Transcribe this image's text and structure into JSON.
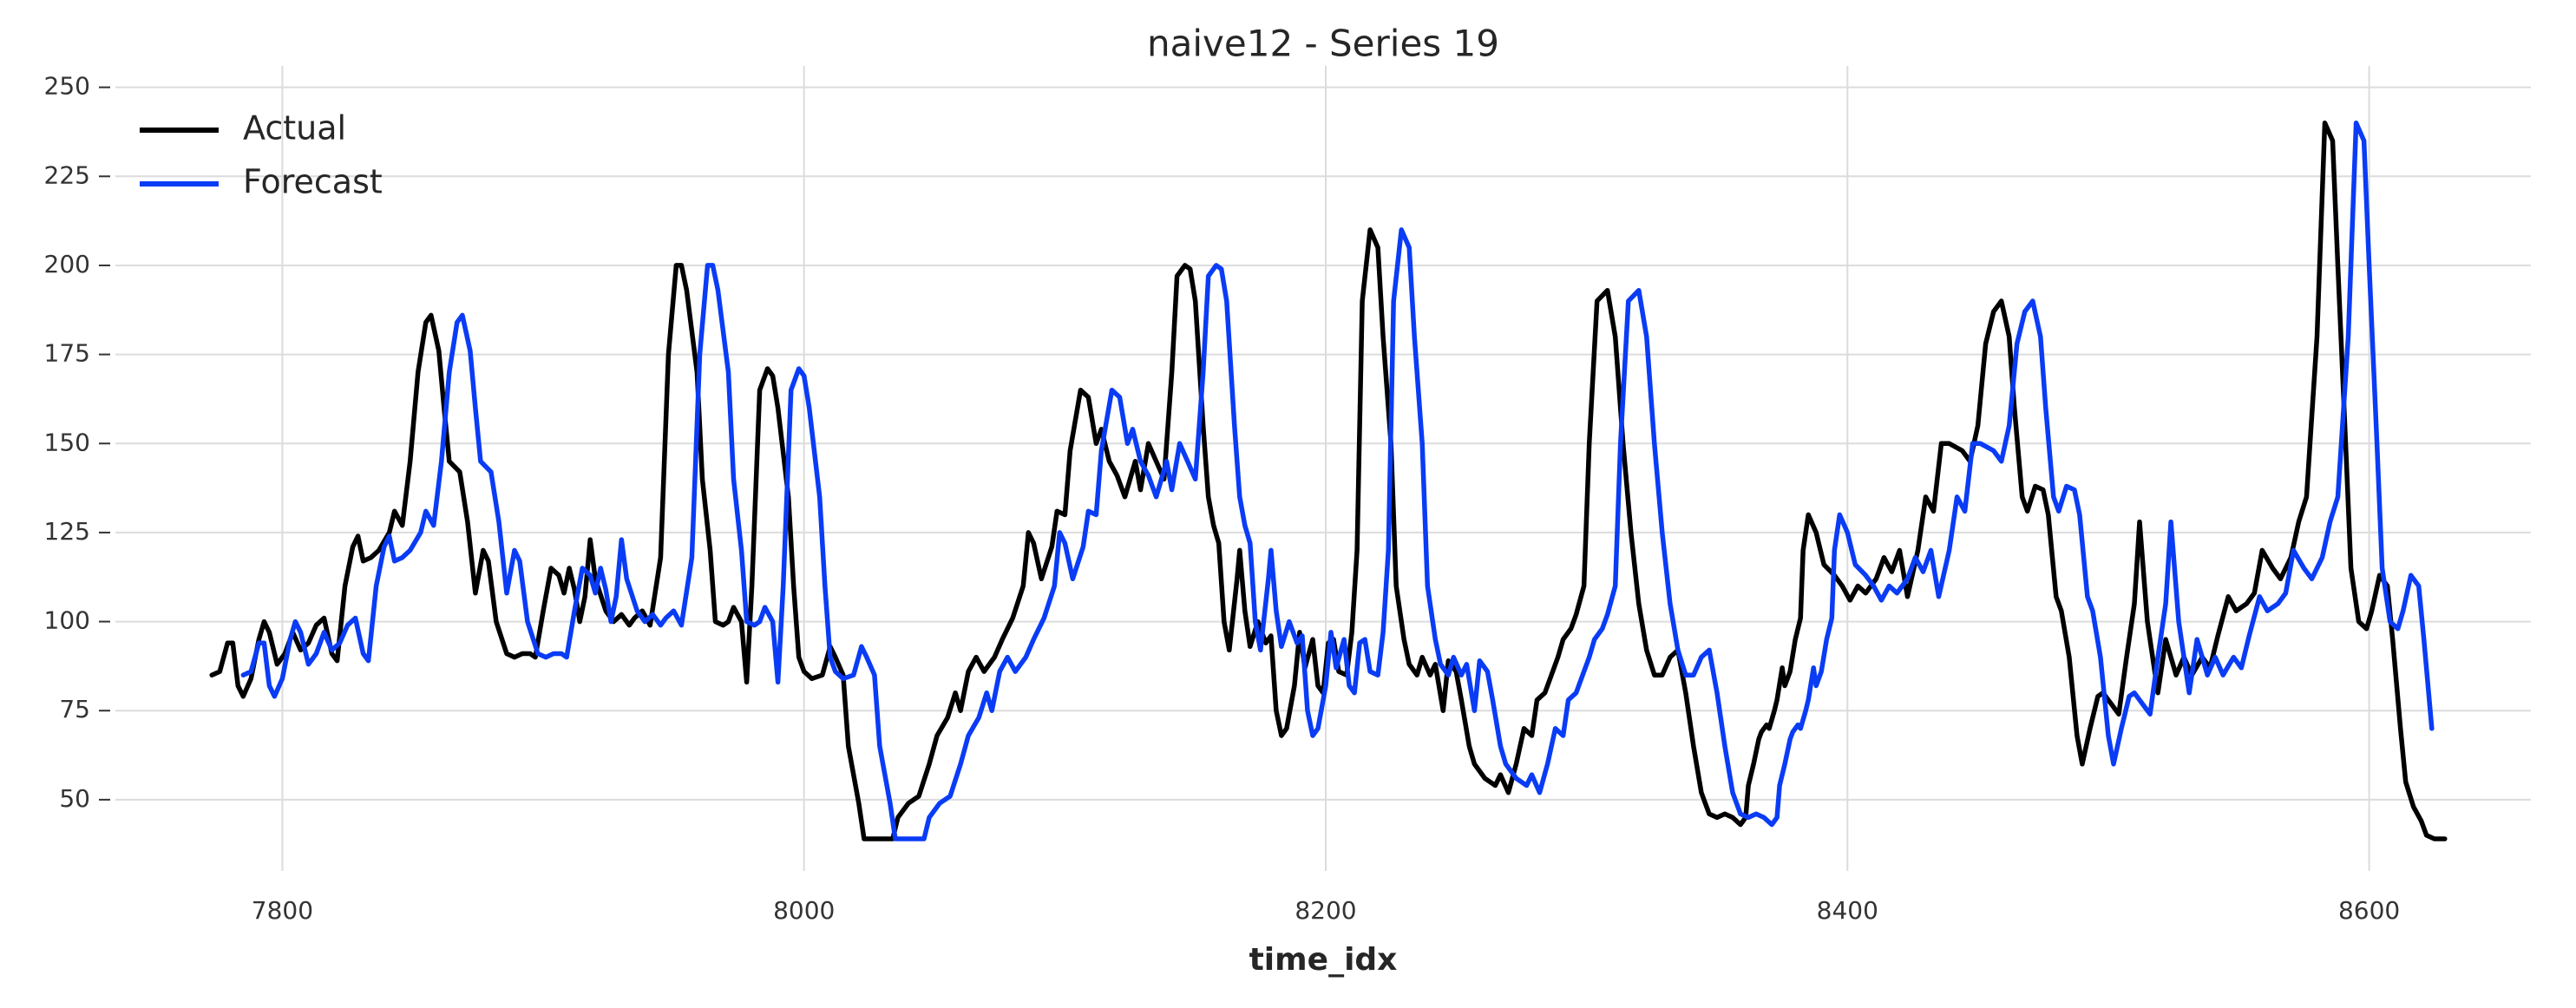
{
  "chart_data": {
    "type": "line",
    "title": "naive12 - Series 19",
    "x_label": "time_idx",
    "xlim": [
      7736,
      8662
    ],
    "ylim": [
      30,
      256
    ],
    "xticks": [
      7800,
      8000,
      8200,
      8400,
      8600
    ],
    "yticks": [
      50,
      75,
      100,
      125,
      150,
      175,
      200,
      225,
      250
    ],
    "grid": true,
    "legend": "upper left",
    "series": [
      {
        "name": "Actual",
        "color": "#000000",
        "x": [
          7773,
          7776,
          7779,
          7781,
          7783,
          7785,
          7788,
          7791,
          7793,
          7795,
          7798,
          7801,
          7804,
          7807,
          7810,
          7813,
          7816,
          7819,
          7821,
          7824,
          7827,
          7829,
          7831,
          7834,
          7837,
          7841,
          7843,
          7846,
          7849,
          7852,
          7855,
          7857,
          7860,
          7862,
          7864,
          7868,
          7871,
          7874,
          7877,
          7879,
          7882,
          7886,
          7889,
          7892,
          7895,
          7897,
          7900,
          7903,
          7906,
          7908,
          7910,
          7912,
          7914,
          7916,
          7918,
          7920,
          7924,
          7927,
          7930,
          7933,
          7935,
          7938,
          7941,
          7945,
          7948,
          7951,
          7953,
          7955,
          7959,
          7961,
          7964,
          7966,
          7969,
          7971,
          7973,
          7976,
          7978,
          7980,
          7983,
          7986,
          7988,
          7990,
          7994,
          7996,
          7998,
          8000,
          8003,
          8007,
          8010,
          8012,
          8015,
          8017,
          8021,
          8023,
          8026,
          8029,
          8034,
          8036,
          8040,
          8044,
          8048,
          8051,
          8055,
          8058,
          8060,
          8063,
          8066,
          8069,
          8073,
          8076,
          8080,
          8084,
          8086,
          8088,
          8091,
          8095,
          8097,
          8100,
          8102,
          8106,
          8109,
          8112,
          8114,
          8117,
          8120,
          8123,
          8127,
          8129,
          8132,
          8135,
          8138,
          8141,
          8143,
          8146,
          8148,
          8150,
          8153,
          8155,
          8157,
          8159,
          8161,
          8163,
          8166,
          8167,
          8169,
          8171,
          8174,
          8177,
          8179,
          8181,
          8183,
          8185,
          8188,
          8190,
          8192,
          8195,
          8197,
          8199,
          8201,
          8203,
          8205,
          8208,
          8210,
          8212,
          8214,
          8217,
          8220,
          8222,
          8225,
          8227,
          8230,
          8232,
          8235,
          8237,
          8240,
          8242,
          8245,
          8247,
          8250,
          8252,
          8255,
          8257,
          8261,
          8265,
          8267,
          8270,
          8273,
          8276,
          8279,
          8281,
          8284,
          8286,
          8289,
          8291,
          8294,
          8296,
          8299,
          8301,
          8304,
          8308,
          8311,
          8314,
          8317,
          8320,
          8323,
          8326,
          8329,
          8332,
          8335,
          8338,
          8341,
          8344,
          8347,
          8350,
          8353,
          8356,
          8359,
          8361,
          8362,
          8364,
          8366,
          8367,
          8369,
          8370,
          8372,
          8373,
          8375,
          8376,
          8378,
          8380,
          8382,
          8383,
          8385,
          8388,
          8391,
          8395,
          8398,
          8401,
          8404,
          8407,
          8411,
          8414,
          8417,
          8420,
          8423,
          8427,
          8430,
          8433,
          8436,
          8439,
          8444,
          8447,
          8450,
          8453,
          8456,
          8459,
          8462,
          8464,
          8467,
          8469,
          8472,
          8475,
          8477,
          8480,
          8482,
          8485,
          8488,
          8490,
          8493,
          8496,
          8498,
          8501,
          8504,
          8507,
          8510,
          8512,
          8515,
          8519,
          8522,
          8526,
          8529,
          8532,
          8536,
          8539,
          8542,
          8546,
          8549,
          8553,
          8556,
          8559,
          8563,
          8566,
          8570,
          8573,
          8576,
          8580,
          8583,
          8586,
          8588,
          8591,
          8593,
          8596,
          8599,
          8601,
          8604,
          8607,
          8609,
          8612,
          8614,
          8617,
          8620,
          8622,
          8625,
          8629
        ],
        "values": [
          85,
          86,
          94,
          94,
          82,
          79,
          84,
          95,
          100,
          97,
          88,
          91,
          97,
          92,
          94,
          99,
          101,
          91,
          89,
          110,
          121,
          124,
          117,
          118,
          120,
          125,
          131,
          127,
          145,
          170,
          184,
          186,
          176,
          160,
          145,
          142,
          128,
          108,
          120,
          117,
          100,
          91,
          90,
          91,
          91,
          90,
          103,
          115,
          113,
          108,
          115,
          109,
          100,
          107,
          123,
          112,
          103,
          100,
          102,
          99,
          101,
          103,
          99,
          118,
          175,
          200,
          200,
          193,
          170,
          140,
          120,
          100,
          99,
          100,
          104,
          100,
          83,
          110,
          165,
          171,
          169,
          160,
          135,
          110,
          90,
          86,
          84,
          85,
          93,
          90,
          85,
          65,
          49,
          39,
          39,
          39,
          39,
          45,
          49,
          51,
          60,
          68,
          73,
          80,
          75,
          86,
          90,
          86,
          90,
          95,
          101,
          110,
          125,
          122,
          112,
          121,
          131,
          130,
          148,
          165,
          163,
          150,
          154,
          145,
          141,
          135,
          145,
          137,
          150,
          145,
          140,
          170,
          197,
          200,
          199,
          190,
          155,
          135,
          127,
          122,
          100,
          92,
          112,
          120,
          103,
          93,
          100,
          94,
          96,
          75,
          68,
          70,
          82,
          97,
          87,
          95,
          82,
          80,
          94,
          95,
          86,
          85,
          97,
          120,
          190,
          210,
          205,
          180,
          150,
          110,
          95,
          88,
          85,
          90,
          85,
          88,
          75,
          89,
          86,
          78,
          65,
          60,
          56,
          54,
          57,
          52,
          60,
          70,
          68,
          78,
          80,
          84,
          90,
          95,
          98,
          102,
          110,
          150,
          190,
          193,
          180,
          150,
          125,
          105,
          92,
          85,
          85,
          90,
          92,
          80,
          65,
          52,
          46,
          45,
          46,
          45,
          43,
          45,
          54,
          60,
          67,
          69,
          71,
          70,
          75,
          78,
          87,
          82,
          86,
          95,
          101,
          120,
          130,
          125,
          116,
          113,
          110,
          106,
          110,
          108,
          112,
          118,
          114,
          120,
          107,
          120,
          135,
          131,
          150,
          150,
          148,
          145,
          155,
          178,
          187,
          190,
          180,
          160,
          135,
          131,
          138,
          137,
          130,
          107,
          103,
          90,
          68,
          60,
          70,
          79,
          80,
          77,
          74,
          90,
          105,
          128,
          100,
          80,
          95,
          85,
          90,
          85,
          90,
          87,
          96,
          107,
          103,
          105,
          108,
          120,
          115,
          112,
          118,
          128,
          135,
          180,
          240,
          235,
          200,
          150,
          115,
          100,
          98,
          103,
          113,
          110,
          95,
          70,
          55,
          48,
          44,
          40,
          39,
          39
        ]
      },
      {
        "name": "Forecast",
        "color": "#0a3cf5",
        "x": [
          7785,
          7788,
          7791,
          7793,
          7795,
          7797,
          7800,
          7803,
          7805,
          7807,
          7810,
          7813,
          7816,
          7819,
          7822,
          7825,
          7828,
          7831,
          7833,
          7836,
          7839,
          7841,
          7843,
          7846,
          7849,
          7853,
          7855,
          7858,
          7861,
          7864,
          7867,
          7869,
          7872,
          7874,
          7876,
          7880,
          7883,
          7886,
          7889,
          7891,
          7894,
          7898,
          7901,
          7904,
          7907,
          7909,
          7912,
          7915,
          7918,
          7920,
          7922,
          7924,
          7926,
          7928,
          7930,
          7932,
          7936,
          7939,
          7942,
          7945,
          7947,
          7950,
          7953,
          7957,
          7960,
          7963,
          7965,
          7967,
          7971,
          7973,
          7976,
          7978,
          7981,
          7983,
          7985,
          7988,
          7990,
          7992,
          7995,
          7998,
          8000,
          8002,
          8006,
          8008,
          8010,
          8012,
          8015,
          8019,
          8022,
          8024,
          8027,
          8029,
          8033,
          8035,
          8038,
          8041,
          8046,
          8048,
          8052,
          8056,
          8060,
          8063,
          8067,
          8070,
          8072,
          8075,
          8078,
          8081,
          8085,
          8088,
          8092,
          8096,
          8098,
          8100,
          8103,
          8107,
          8109,
          8112,
          8114,
          8118,
          8121,
          8124,
          8126,
          8129,
          8132,
          8135,
          8139,
          8141,
          8144,
          8147,
          8150,
          8153,
          8155,
          8158,
          8160,
          8162,
          8165,
          8167,
          8169,
          8171,
          8173,
          8175,
          8178,
          8179,
          8181,
          8183,
          8186,
          8189,
          8191,
          8193,
          8195,
          8197,
          8200,
          8202,
          8204,
          8207,
          8209,
          8211,
          8213,
          8215,
          8217,
          8220,
          8222,
          8224,
          8226,
          8229,
          8232,
          8234,
          8237,
          8239,
          8242,
          8244,
          8247,
          8249,
          8252,
          8254,
          8257,
          8259,
          8262,
          8264,
          8267,
          8269,
          8273,
          8277,
          8279,
          8282,
          8285,
          8288,
          8291,
          8293,
          8296,
          8298,
          8301,
          8303,
          8306,
          8308,
          8311,
          8313,
          8316,
          8320,
          8323,
          8326,
          8329,
          8332,
          8335,
          8338,
          8341,
          8344,
          8347,
          8350,
          8353,
          8356,
          8359,
          8362,
          8365,
          8368,
          8371,
          8373,
          8374,
          8376,
          8378,
          8379,
          8381,
          8382,
          8384,
          8385,
          8387,
          8388,
          8390,
          8392,
          8394,
          8395,
          8397,
          8400,
          8403,
          8407,
          8410,
          8413,
          8416,
          8419,
          8423,
          8426,
          8429,
          8432,
          8435,
          8439,
          8442,
          8445,
          8448,
          8451,
          8456,
          8459,
          8462,
          8465,
          8468,
          8471,
          8474,
          8476,
          8479,
          8481,
          8484,
          8487,
          8489,
          8492,
          8494,
          8497,
          8500,
          8502,
          8505,
          8508,
          8510,
          8513,
          8516,
          8519,
          8522,
          8524,
          8527,
          8531,
          8534,
          8538,
          8541,
          8544,
          8548,
          8551,
          8554,
          8558,
          8561,
          8565,
          8568,
          8571,
          8575,
          8578,
          8582,
          8585,
          8588,
          8592,
          8595,
          8598,
          8600,
          8603,
          8605,
          8608,
          8611,
          8613,
          8616,
          8619,
          8621,
          8624
        ],
        "values": [
          85,
          86,
          94,
          94,
          82,
          79,
          84,
          95,
          100,
          97,
          88,
          91,
          97,
          92,
          94,
          99,
          101,
          91,
          89,
          110,
          121,
          124,
          117,
          118,
          120,
          125,
          131,
          127,
          145,
          170,
          184,
          186,
          176,
          160,
          145,
          142,
          128,
          108,
          120,
          117,
          100,
          91,
          90,
          91,
          91,
          90,
          103,
          115,
          113,
          108,
          115,
          109,
          100,
          107,
          123,
          112,
          103,
          100,
          102,
          99,
          101,
          103,
          99,
          118,
          175,
          200,
          200,
          193,
          170,
          140,
          120,
          100,
          99,
          100,
          104,
          100,
          83,
          110,
          165,
          171,
          169,
          160,
          135,
          110,
          90,
          86,
          84,
          85,
          93,
          90,
          85,
          65,
          49,
          39,
          39,
          39,
          39,
          45,
          49,
          51,
          60,
          68,
          73,
          80,
          75,
          86,
          90,
          86,
          90,
          95,
          101,
          110,
          125,
          122,
          112,
          121,
          131,
          130,
          148,
          165,
          163,
          150,
          154,
          145,
          141,
          135,
          145,
          137,
          150,
          145,
          140,
          170,
          197,
          200,
          199,
          190,
          155,
          135,
          127,
          122,
          100,
          92,
          112,
          120,
          103,
          93,
          100,
          94,
          96,
          75,
          68,
          70,
          82,
          97,
          87,
          95,
          82,
          80,
          94,
          95,
          86,
          85,
          97,
          120,
          190,
          210,
          205,
          180,
          150,
          110,
          95,
          88,
          85,
          90,
          85,
          88,
          75,
          89,
          86,
          78,
          65,
          60,
          56,
          54,
          57,
          52,
          60,
          70,
          68,
          78,
          80,
          84,
          90,
          95,
          98,
          102,
          110,
          150,
          190,
          193,
          180,
          150,
          125,
          105,
          92,
          85,
          85,
          90,
          92,
          80,
          65,
          52,
          46,
          45,
          46,
          45,
          43,
          45,
          54,
          60,
          67,
          69,
          71,
          70,
          75,
          78,
          87,
          82,
          86,
          95,
          101,
          120,
          130,
          125,
          116,
          113,
          110,
          106,
          110,
          108,
          112,
          118,
          114,
          120,
          107,
          120,
          135,
          131,
          150,
          150,
          148,
          145,
          155,
          178,
          187,
          190,
          180,
          160,
          135,
          131,
          138,
          137,
          130,
          107,
          103,
          90,
          68,
          60,
          70,
          79,
          80,
          77,
          74,
          90,
          105,
          128,
          100,
          80,
          95,
          85,
          90,
          85,
          90,
          87,
          96,
          107,
          103,
          105,
          108,
          120,
          115,
          112,
          118,
          128,
          135,
          180,
          240,
          235,
          200,
          150,
          115,
          100,
          98,
          103,
          113,
          110,
          95,
          70
        ]
      }
    ]
  }
}
